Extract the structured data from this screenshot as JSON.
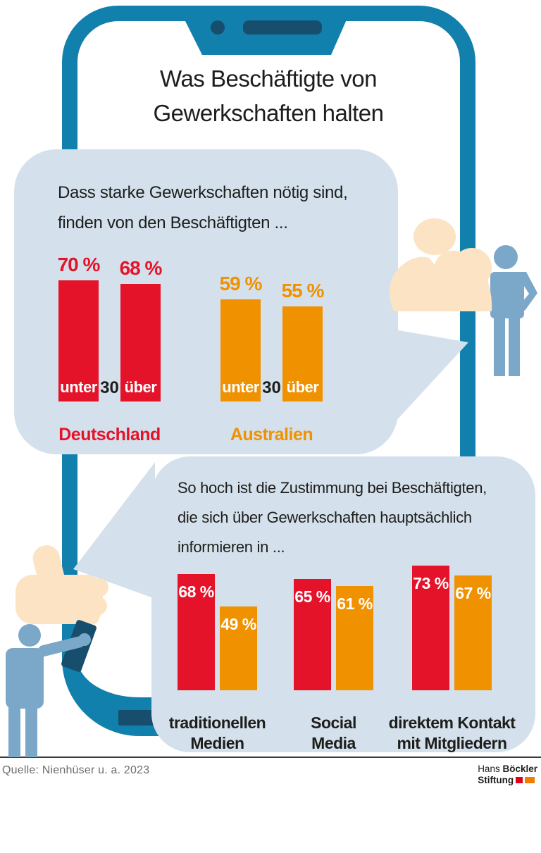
{
  "title": {
    "text": "Was Beschäftigte von\nGewerkschaften halten"
  },
  "chart_data": [
    {
      "type": "bar",
      "question": "Dass starke Gewerkschaften nötig sind,\nfinden von den Beschäftigten ...",
      "unit": "%",
      "gap_label": "30",
      "ylim": [
        0,
        100
      ],
      "legend_position": "below-groups",
      "groups": [
        {
          "label": "Deutschland",
          "color": "#e5132a",
          "bars": [
            {
              "label": "unter",
              "value": 70
            },
            {
              "label": "über",
              "value": 68
            }
          ]
        },
        {
          "label": "Australien",
          "color": "#f09100",
          "bars": [
            {
              "label": "unter",
              "value": 59
            },
            {
              "label": "über",
              "value": 55
            }
          ]
        }
      ]
    },
    {
      "type": "bar",
      "question": "So hoch ist die Zustimmung bei Beschäftigten,\ndie sich über Gewerkschaften hauptsächlich\ninformieren in ...",
      "unit": "%",
      "ylim": [
        0,
        100
      ],
      "categories": [
        "traditionellen\nMedien",
        "Social\nMedia",
        "direktem Kontakt\nmit Mitgliedern"
      ],
      "series": [
        {
          "name": "series_red",
          "color": "#e5132a",
          "values": [
            68,
            65,
            73
          ]
        },
        {
          "name": "series_orange",
          "color": "#f09100",
          "values": [
            49,
            61,
            67
          ]
        }
      ]
    }
  ],
  "footer": {
    "source": "Quelle: Nienhüser u. a. 2023",
    "logo": {
      "name_regular": "Hans",
      "name_bold": "Böckler",
      "line2": "Stiftung"
    }
  },
  "colors": {
    "phone": "#1280ac",
    "phone_dark": "#174e6d",
    "bubble": "#d4e1ec",
    "red": "#e5132a",
    "orange": "#f09100",
    "figure_blue": "#7ba7c9",
    "skin": "#fce3c3",
    "logo_red": "#e2001a",
    "logo_orange": "#f07c00"
  },
  "icons": {
    "phone": "smartphone-frame-icon",
    "camera": "camera-dot-icon",
    "speaker": "speaker-slot-icon",
    "home": "home-button-icon",
    "arm": "flexed-biceps-icon",
    "hand": "thumbs-up-icon",
    "person_left": "person-figure-icon",
    "person_right": "person-akimbo-icon"
  }
}
